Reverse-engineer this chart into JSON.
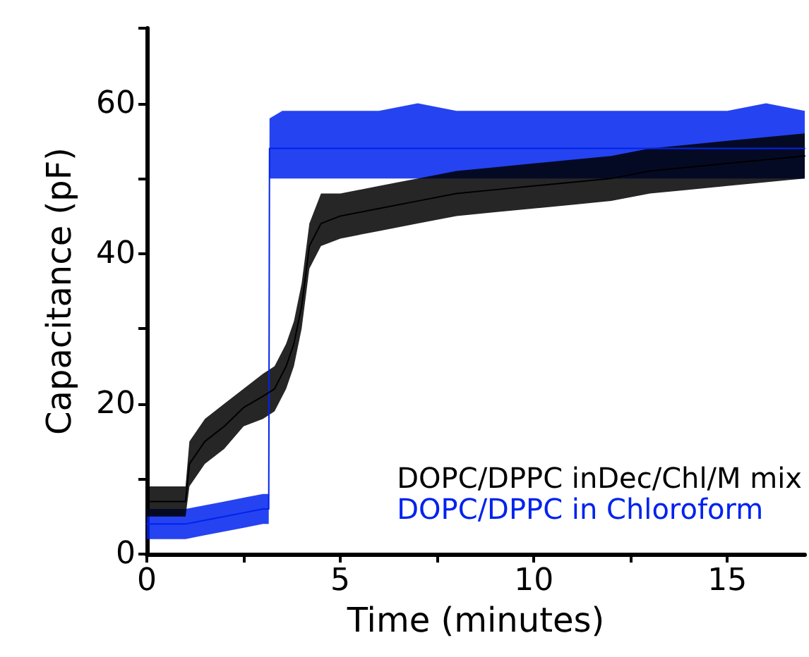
{
  "chart_data": {
    "type": "line",
    "xlabel": "Time (minutes)",
    "ylabel": "Capacitance (pF)",
    "xlim": [
      0,
      17
    ],
    "ylim": [
      0,
      70
    ],
    "xticks": [
      0,
      {
        "value": 2.5,
        "label": null
      },
      5,
      {
        "value": 7.5,
        "label": null
      },
      10,
      {
        "value": 12.5,
        "label": null
      },
      15
    ],
    "yticks": [
      0,
      {
        "value": 10,
        "label": null
      },
      20,
      {
        "value": 30,
        "label": null
      },
      40,
      {
        "value": 50,
        "label": null
      },
      60,
      {
        "value": 70,
        "label": null
      }
    ],
    "legend": "bottom right",
    "grid": false,
    "marker": "none",
    "line_style": "solid",
    "series": [
      {
        "name": "DOPC/DPPC inDec/Chl/M mix",
        "color": "#000000",
        "x": [
          0,
          0.5,
          1.0,
          1.1,
          1.5,
          2,
          2.5,
          3,
          3.3,
          3.6,
          3.8,
          4.0,
          4.2,
          4.5,
          5,
          6,
          7,
          8,
          9,
          10,
          11,
          12,
          13,
          14,
          15,
          16,
          17
        ],
        "values": [
          7,
          7,
          7,
          12,
          15,
          17,
          19.5,
          21,
          22,
          25,
          28,
          33,
          41,
          44,
          45,
          46,
          47,
          48,
          48.5,
          49,
          49.5,
          50,
          51,
          51.5,
          52,
          52.5,
          53
        ],
        "lower": [
          5,
          5,
          5,
          9,
          12,
          14,
          17,
          18,
          19,
          22,
          25,
          30,
          38,
          41,
          42,
          43,
          44,
          45,
          45.5,
          46,
          46.5,
          47,
          48,
          48.5,
          49,
          49.5,
          50
        ],
        "upper": [
          9,
          9,
          9,
          15,
          18,
          20,
          22,
          24,
          25,
          28,
          31,
          36,
          44,
          48,
          48,
          49,
          50,
          51,
          51.5,
          52,
          52.5,
          53,
          54,
          54.5,
          55,
          55.5,
          56
        ]
      },
      {
        "name": "DOPC/DPPC in Chloroform",
        "color": "#0022ee",
        "x": [
          0,
          0.5,
          1,
          1.5,
          2,
          2.5,
          3,
          3.15,
          3.17,
          3.5,
          4,
          5,
          6,
          7,
          8,
          9,
          10,
          11,
          12,
          13,
          14,
          15,
          16,
          17
        ],
        "values": [
          4,
          4,
          4,
          4.5,
          5,
          5.5,
          6,
          6,
          54,
          54,
          54,
          54,
          54,
          54,
          54,
          54,
          54,
          54,
          54,
          54,
          54,
          54,
          54,
          54
        ],
        "lower": [
          2,
          2,
          2,
          2.5,
          3,
          3.5,
          4,
          4,
          50,
          50,
          50,
          50,
          50,
          50,
          50,
          50,
          50,
          50,
          50,
          50,
          50,
          50,
          50,
          50
        ],
        "upper": [
          6,
          6,
          6,
          6.5,
          7,
          7.5,
          8,
          8,
          58,
          59,
          59,
          59,
          59,
          60,
          59,
          59,
          59,
          59,
          59,
          59,
          59,
          59,
          60,
          59
        ]
      }
    ]
  }
}
